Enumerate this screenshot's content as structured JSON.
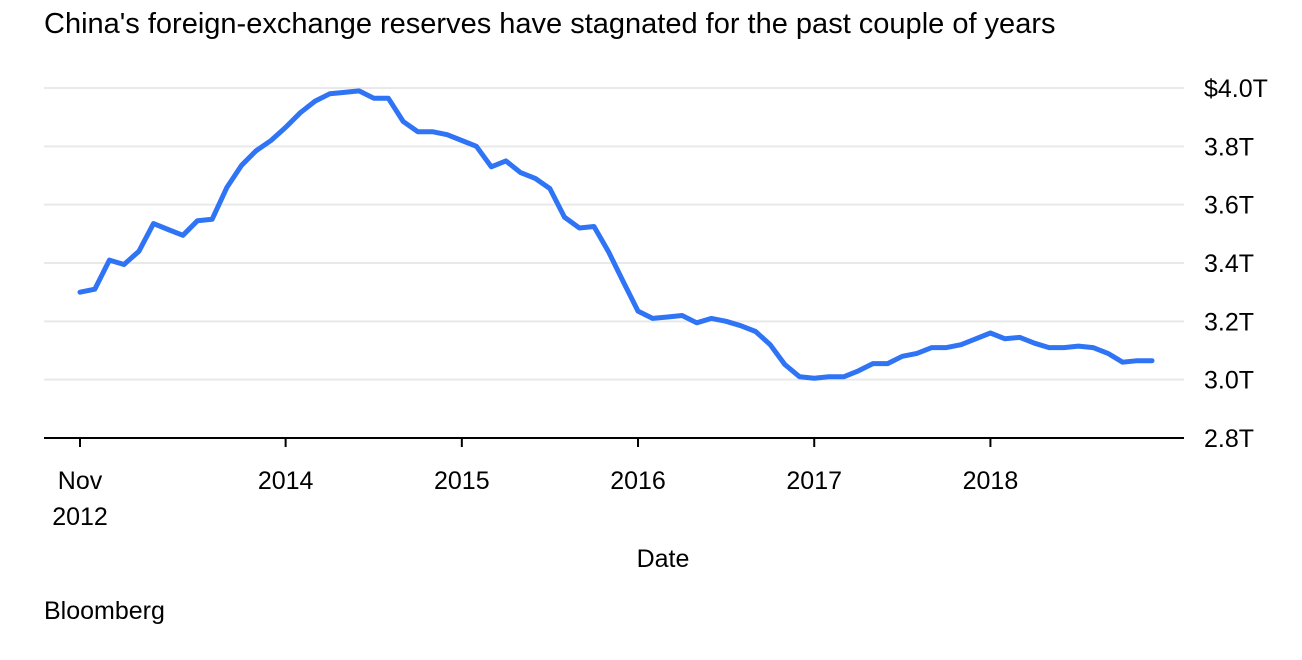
{
  "chart_data": {
    "type": "line",
    "title": "China's foreign-exchange reserves have stagnated for the past couple of years",
    "xlabel": "Date",
    "ylabel": "",
    "source": "Bloomberg",
    "ylim": [
      2.8,
      4.0
    ],
    "y_ticks": [
      {
        "value": 4.0,
        "label": "$4.0T"
      },
      {
        "value": 3.8,
        "label": "3.8T"
      },
      {
        "value": 3.6,
        "label": "3.6T"
      },
      {
        "value": 3.4,
        "label": "3.4T"
      },
      {
        "value": 3.2,
        "label": "3.2T"
      },
      {
        "value": 3.0,
        "label": "3.0T"
      },
      {
        "value": 2.8,
        "label": "2.8T"
      }
    ],
    "x_ticks": [
      {
        "value": 2012.833,
        "lines": [
          "Nov",
          "2012"
        ]
      },
      {
        "value": 2014,
        "lines": [
          "2014"
        ]
      },
      {
        "value": 2015,
        "lines": [
          "2015"
        ]
      },
      {
        "value": 2016,
        "lines": [
          "2016"
        ]
      },
      {
        "value": 2017,
        "lines": [
          "2017"
        ]
      },
      {
        "value": 2018,
        "lines": [
          "2018"
        ]
      }
    ],
    "xlim": [
      2012.63,
      2019.0
    ],
    "line_color": "#2f74f5",
    "series": [
      {
        "name": "Foreign-exchange reserves",
        "x": [
          2012.833,
          2012.917,
          2013.0,
          2013.083,
          2013.167,
          2013.25,
          2013.333,
          2013.417,
          2013.5,
          2013.583,
          2013.667,
          2013.75,
          2013.833,
          2013.917,
          2014.0,
          2014.083,
          2014.167,
          2014.25,
          2014.333,
          2014.417,
          2014.5,
          2014.583,
          2014.667,
          2014.75,
          2014.833,
          2014.917,
          2015.0,
          2015.083,
          2015.167,
          2015.25,
          2015.333,
          2015.417,
          2015.5,
          2015.583,
          2015.667,
          2015.75,
          2015.833,
          2015.917,
          2016.0,
          2016.083,
          2016.167,
          2016.25,
          2016.333,
          2016.417,
          2016.5,
          2016.583,
          2016.667,
          2016.75,
          2016.833,
          2016.917,
          2017.0,
          2017.083,
          2017.167,
          2017.25,
          2017.333,
          2017.417,
          2017.5,
          2017.583,
          2017.667,
          2017.75,
          2017.833,
          2017.917,
          2018.0,
          2018.083,
          2018.167,
          2018.25,
          2018.333,
          2018.417,
          2018.5,
          2018.583,
          2018.667,
          2018.75,
          2018.833,
          2018.917
        ],
        "values": [
          3.3,
          3.31,
          3.41,
          3.395,
          3.44,
          3.535,
          3.515,
          3.495,
          3.545,
          3.55,
          3.66,
          3.735,
          3.785,
          3.82,
          3.865,
          3.915,
          3.955,
          3.98,
          3.985,
          3.99,
          3.965,
          3.965,
          3.885,
          3.85,
          3.85,
          3.84,
          3.82,
          3.8,
          3.73,
          3.75,
          3.71,
          3.69,
          3.655,
          3.557,
          3.52,
          3.525,
          3.438,
          3.335,
          3.235,
          3.21,
          3.215,
          3.22,
          3.195,
          3.21,
          3.2,
          3.185,
          3.165,
          3.12,
          3.052,
          3.01,
          3.005,
          3.01,
          3.01,
          3.03,
          3.055,
          3.055,
          3.08,
          3.09,
          3.11,
          3.11,
          3.12,
          3.14,
          3.16,
          3.14,
          3.145,
          3.125,
          3.11,
          3.11,
          3.115,
          3.11,
          3.09,
          3.06,
          3.065,
          3.065
        ]
      }
    ]
  }
}
